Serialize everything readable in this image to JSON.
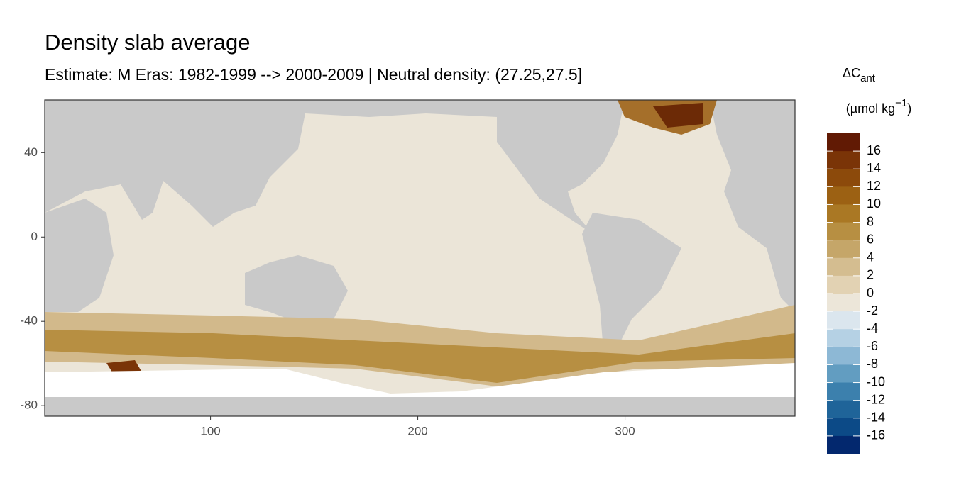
{
  "chart_data": {
    "type": "raster-map",
    "title": "Density slab average",
    "subtitle": "Estimate: M Eras: 1982-1999 --> 2000-2009 | Neutral density: (27.25,27.5]",
    "legend_title": {
      "main": "ΔC",
      "sub": "ant",
      "unit": "(µmol kg",
      "sup": "−1",
      "close": ")"
    },
    "xlim": [
      20,
      382
    ],
    "ylim": [
      -85,
      65
    ],
    "xticks": [
      100,
      200,
      300
    ],
    "yticks": [
      40,
      0,
      -40,
      -80
    ],
    "legend": {
      "lim": [
        -18,
        18
      ],
      "ticks": [
        16,
        14,
        12,
        10,
        8,
        6,
        4,
        2,
        0,
        -2,
        -4,
        -6,
        -8,
        -10,
        -12,
        -14,
        -16
      ],
      "colors": [
        "#611a04",
        "#7a3407",
        "#8c4a0b",
        "#9c6113",
        "#aa7824",
        "#b78f42",
        "#c5a669",
        "#d4bd90",
        "#e2d2b3",
        "#ece6d9",
        "#dbe6ee",
        "#b5d1e4",
        "#8db8d5",
        "#629dc1",
        "#3c80ad",
        "#1f6499",
        "#0c4a87",
        "#03286e"
      ]
    }
  }
}
